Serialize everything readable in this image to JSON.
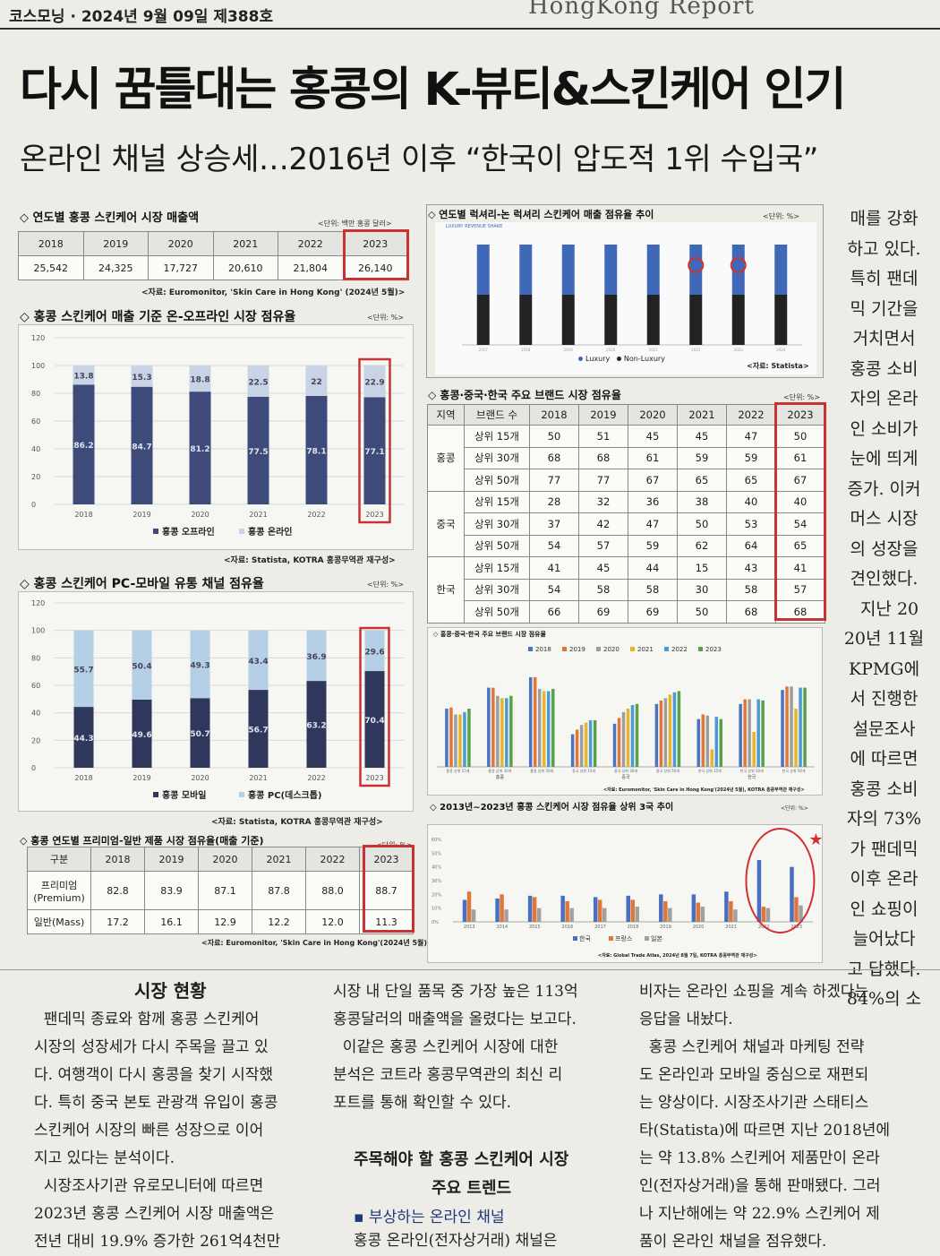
{
  "header": {
    "left": "코스모닝 · 2024년 9월 09일  제388호",
    "report": "HongKong Report"
  },
  "headline": "다시 꿈틀대는 홍콩의 K-뷰티&스킨케어 인기",
  "subheadline": "온라인 채널 상승세…2016년 이후 “한국이 압도적 1위 수입국”",
  "sales_table": {
    "title": "◇ 연도별 홍콩 스킨케어 시장 매출액",
    "unit": "<단위: 백만 홍콩 달러>",
    "years": [
      "2018",
      "2019",
      "2020",
      "2021",
      "2022",
      "2023"
    ],
    "values": [
      "25,542",
      "24,325",
      "17,727",
      "20,610",
      "21,804",
      "26,140"
    ],
    "source": "<자료: Euromonitor, 'Skin Care in Hong Kong' (2024년 5월)>"
  },
  "onoff_chart": {
    "title": "◇ 홍콩 스킨케어 매출 기준 온-오프라인 시장 점유율",
    "unit": "<단위: %>",
    "legend_offline": "홍콩 오프라인",
    "legend_online": "홍콩 온라인",
    "source": "<자료: Statista, KOTRA 홍콩무역관 재구성>"
  },
  "channel_chart": {
    "title": "◇ 홍콩 스킨케어 PC-모바일 유통 채널 점유율",
    "unit": "<단위: %>",
    "legend_mobile": "홍콩 모바일",
    "legend_pc": "홍콩 PC(데스크톱)",
    "source": "<자료: Statista, KOTRA 홍콩무역관 재구성>"
  },
  "premium_table": {
    "title": "◇ 홍콩 연도별 프리미엄-일반 제품 시장 점유율(매출 기준)",
    "unit": "<단위: %>",
    "corner": "구분",
    "years": [
      "2018",
      "2019",
      "2020",
      "2021",
      "2022",
      "2023"
    ],
    "premium_label_1": "프리미엄",
    "premium_label_2": "(Premium)",
    "mass_label": "일반(Mass)",
    "premium": [
      "82.8",
      "83.9",
      "87.1",
      "87.8",
      "88.0",
      "88.7"
    ],
    "mass": [
      "17.2",
      "16.1",
      "12.9",
      "12.2",
      "12.0",
      "11.3"
    ],
    "source": "<자료: Euromonitor, 'Skin Care in Hong Kong'(2024년 5월)>"
  },
  "luxury_chart": {
    "title": "◇ 연도별 럭셔리-논 럭셔리 스킨케어 매출 점유율 추이",
    "unit": "<단위: %>",
    "inner_title": "LUXURY REVENUE SHARE",
    "legend_luxury": "Luxury",
    "legend_nonluxury": "Non-Luxury",
    "source": "<자료: Statista>"
  },
  "brand_table": {
    "title": "◇ 홍콩·중국·한국 주요 브랜드 시장 점유율",
    "unit": "<단위: %>",
    "col_region": "지역",
    "col_brands": "브랜드 수",
    "years": [
      "2018",
      "2019",
      "2020",
      "2021",
      "2022",
      "2023"
    ],
    "groups": [
      {
        "region": "홍콩",
        "rows": [
          {
            "label": "상위 15개",
            "values": [
              "50",
              "51",
              "45",
              "45",
              "47",
              "50"
            ]
          },
          {
            "label": "상위 30개",
            "values": [
              "68",
              "68",
              "61",
              "59",
              "59",
              "61"
            ]
          },
          {
            "label": "상위 50개",
            "values": [
              "77",
              "77",
              "67",
              "65",
              "65",
              "67"
            ]
          }
        ]
      },
      {
        "region": "중국",
        "rows": [
          {
            "label": "상위 15개",
            "values": [
              "28",
              "32",
              "36",
              "38",
              "40",
              "40"
            ]
          },
          {
            "label": "상위 30개",
            "values": [
              "37",
              "42",
              "47",
              "50",
              "53",
              "54"
            ]
          },
          {
            "label": "상위 50개",
            "values": [
              "54",
              "57",
              "59",
              "62",
              "64",
              "65"
            ]
          }
        ]
      },
      {
        "region": "한국",
        "rows": [
          {
            "label": "상위 15개",
            "values": [
              "41",
              "45",
              "44",
              "15",
              "43",
              "41"
            ]
          },
          {
            "label": "상위 30개",
            "values": [
              "54",
              "58",
              "58",
              "30",
              "58",
              "57"
            ]
          },
          {
            "label": "상위 50개",
            "values": [
              "66",
              "69",
              "69",
              "50",
              "68",
              "68"
            ]
          }
        ]
      }
    ]
  },
  "brand_chart": {
    "title": "◇ 홍콩·중국·한국 주요 브랜드 시장 점유율",
    "source": "<자료: Euromonitor, 'Skin Care in Hong Kong'(2024년 5월), KOTRA 홍콩무역관 재구성>"
  },
  "import_chart": {
    "title": "◇ 2013년~2023년 홍콩 스킨케어 시장 점유율 상위 3국 추이",
    "unit": "<단위: %>",
    "source": "<자료: Global Trade Atlas, 2024년 8월 7일, KOTRA 홍콩무역관 재구성>"
  },
  "article": {
    "heading1": "시장 현황",
    "col1": [
      "  팬데믹 종료와 함께 홍콩 스킨케어",
      "시장의 성장세가 다시 주목을 끌고 있",
      "다. 여행객이 다시 홍콩을 찾기 시작했",
      "다. 특히 중국 본토 관광객 유입이 홍콩",
      "스킨케어 시장의 빠른 성장으로 이어",
      "지고 있다는 분석이다.",
      "  시장조사기관 유로모니터에 따르면",
      "2023년 홍콩 스킨케어 시장 매출액은",
      "전년 대비 19.9% 증가한 261억4천만"
    ],
    "col2_top": [
      "시장 내 단일 품목 중 가장 높은 113억",
      "홍콩달러의 매출액을 올렸다는 보고다.",
      "  이같은 홍콩 스킨케어 시장에 대한",
      "분석은 코트라 홍콩무역관의 최신 리",
      "포트를 통해 확인할 수 있다."
    ],
    "heading2_line1": "주목해야 할 홍콩 스킨케어 시장",
    "heading2_line2": "주요 트렌드",
    "bullet": "▪ 부상하는 온라인 채널",
    "col2_bottom": "홍콩 온라인(전자상거래) 채널은",
    "col3": [
      "비자는 온라인 쇼핑을 계속 하겠다는",
      "응답을 내놨다.",
      "  홍콩 스킨케어 채널과 마케팅 전략",
      "도 온라인과 모바일 중심으로 재편되",
      "는 양상이다. 시장조사기관 스태티스",
      "타(Statista)에 따르면 지난 2018년에",
      "는 약 13.8% 스킨케어 제품만이 온라",
      "인(전자상거래)을 통해 판매됐다. 그러",
      "나 지난해에는 약 22.9% 스킨케어 제",
      "품이 온라인 채널을 점유했다."
    ],
    "side": [
      "매를 강화",
      "하고 있다.",
      "특히 팬데",
      "믹 기간을",
      "거치면서",
      "홍콩 소비",
      "자의 온라",
      "인 소비가",
      "눈에 띄게",
      "증가. 이커",
      "머스 시장",
      "의 성장을",
      "견인했다.",
      "  지난 20",
      "20년 11월",
      "KPMG에",
      "서 진행한",
      "설문조사",
      "에 따르면",
      "홍콩 소비",
      "자의 73%",
      "가 팬데믹",
      "이후 온라",
      "인 쇼핑이",
      "늘어났다",
      "고 답했다.",
      "84%의 소"
    ]
  },
  "chart_data": [
    {
      "type": "bar",
      "title": "홍콩 스킨케어 매출 기준 온-오프라인 시장 점유율",
      "categories": [
        "2018",
        "2019",
        "2020",
        "2021",
        "2022",
        "2023"
      ],
      "series": [
        {
          "name": "홍콩 오프라인",
          "values": [
            86.2,
            84.7,
            81.2,
            77.5,
            78.1,
            77.1
          ]
        },
        {
          "name": "홍콩 온라인",
          "values": [
            13.8,
            15.3,
            18.8,
            22.5,
            22,
            22.9
          ]
        }
      ],
      "ylim": [
        0,
        120
      ],
      "yticks": [
        0,
        20,
        40,
        60,
        80,
        100,
        120
      ],
      "stacked": true,
      "legend": "bottom",
      "colors": [
        "#3d4a7a",
        "#c9d3e6"
      ]
    },
    {
      "type": "bar",
      "title": "홍콩 스킨케어 PC-모바일 유통 채널 점유율",
      "categories": [
        "2018",
        "2019",
        "2020",
        "2021",
        "2022",
        "2023"
      ],
      "series": [
        {
          "name": "홍콩 모바일",
          "values": [
            44.3,
            49.6,
            50.7,
            56.7,
            63.2,
            70.4
          ]
        },
        {
          "name": "홍콩 PC(데스크톱)",
          "values": [
            55.7,
            50.4,
            49.3,
            43.4,
            36.9,
            29.6
          ]
        }
      ],
      "ylim": [
        0,
        120
      ],
      "yticks": [
        0,
        20,
        40,
        60,
        80,
        100,
        120
      ],
      "stacked": true,
      "legend": "bottom",
      "colors": [
        "#2f375c",
        "#b4cfe6"
      ]
    },
    {
      "type": "bar",
      "title": "연도별 럭셔리-논 럭셔리 스킨케어 매출 점유율 추이",
      "categories": [
        "2017",
        "2018",
        "2019",
        "2020",
        "2021",
        "2022",
        "2023",
        "2024"
      ],
      "series": [
        {
          "name": "Luxury",
          "values": [
            50,
            50,
            50,
            50,
            50,
            50,
            50,
            50
          ]
        },
        {
          "name": "Non-Luxury",
          "values": [
            50,
            50,
            50,
            50,
            50,
            50,
            50,
            50
          ]
        }
      ],
      "stacked": true,
      "legend": "bottom",
      "colors": [
        "#3f68b8",
        "#222222"
      ]
    },
    {
      "type": "bar",
      "title": "홍콩·중국·한국 주요 브랜드 시장 점유율",
      "categories": [
        "홍콩 상위 15개",
        "홍콩 상위 30개",
        "홍콩 상위 50개",
        "중국 상위 15개",
        "중국 상위 30개",
        "중국 상위 50개",
        "한국 상위 15개",
        "한국 상위 30개",
        "한국 상위 50개"
      ],
      "series": [
        {
          "name": "2018",
          "values": [
            50,
            68,
            77,
            28,
            37,
            54,
            41,
            54,
            66
          ]
        },
        {
          "name": "2019",
          "values": [
            51,
            68,
            77,
            32,
            42,
            57,
            45,
            58,
            69
          ]
        },
        {
          "name": "2020",
          "values": [
            45,
            61,
            67,
            36,
            47,
            59,
            44,
            58,
            69
          ]
        },
        {
          "name": "2021",
          "values": [
            45,
            59,
            65,
            38,
            50,
            62,
            15,
            30,
            50
          ]
        },
        {
          "name": "2022",
          "values": [
            47,
            59,
            65,
            40,
            53,
            64,
            43,
            58,
            68
          ]
        },
        {
          "name": "2023",
          "values": [
            50,
            61,
            67,
            40,
            54,
            65,
            41,
            57,
            68
          ]
        }
      ],
      "legend": "top",
      "colors": [
        "#4a73c2",
        "#e0773a",
        "#9e9e9e",
        "#e8b52a",
        "#4a9ad6",
        "#5aa04a"
      ]
    },
    {
      "type": "bar",
      "title": "2013년~2023년 홍콩 스킨케어 시장 점유율 상위 3국 추이",
      "categories": [
        "2013",
        "2014",
        "2015",
        "2016",
        "2017",
        "2018",
        "2019",
        "2020",
        "2021",
        "2022",
        "2023"
      ],
      "series": [
        {
          "name": "한국",
          "values": [
            16,
            17,
            19,
            19,
            18,
            19,
            20,
            20,
            22,
            45,
            40
          ]
        },
        {
          "name": "프랑스",
          "values": [
            22,
            20,
            18,
            15,
            16,
            16,
            15,
            14,
            15,
            11,
            18
          ]
        },
        {
          "name": "일본",
          "values": [
            9,
            9,
            10,
            10,
            10,
            11,
            10,
            11,
            9,
            10,
            12
          ]
        }
      ],
      "ylim": [
        0,
        60
      ],
      "yticks": [
        0,
        10,
        20,
        30,
        40,
        50,
        60
      ],
      "legend": "bottom",
      "colors": [
        "#4a6fc0",
        "#e0773a",
        "#a0a0a0"
      ]
    }
  ]
}
